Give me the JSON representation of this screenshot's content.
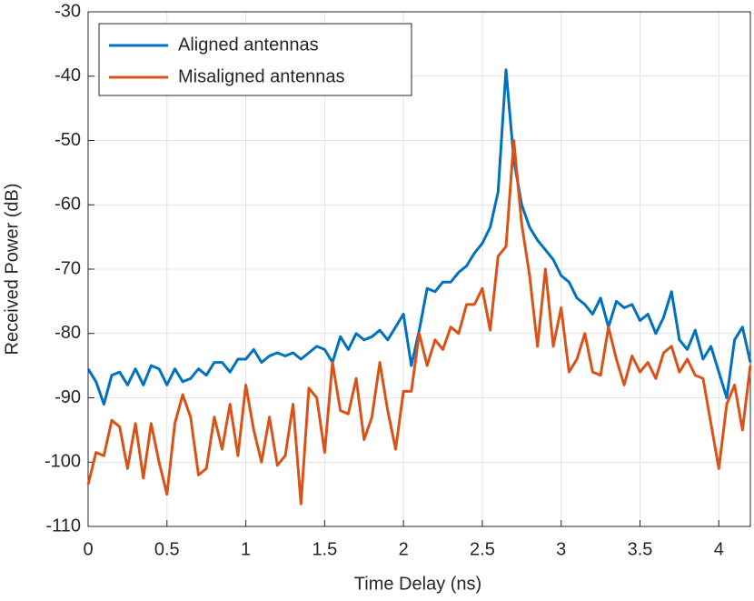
{
  "chart_data": {
    "type": "line",
    "x_label": "Time Delay (ns)",
    "y_label": "Received Power (dB)",
    "x": [
      0,
      0.05,
      0.1,
      0.15,
      0.2,
      0.25,
      0.3,
      0.35,
      0.4,
      0.45,
      0.5,
      0.55,
      0.6,
      0.65,
      0.7,
      0.75,
      0.8,
      0.85,
      0.9,
      0.95,
      1,
      1.05,
      1.1,
      1.15,
      1.2,
      1.25,
      1.3,
      1.35,
      1.4,
      1.45,
      1.5,
      1.55,
      1.6,
      1.65,
      1.7,
      1.75,
      1.8,
      1.85,
      1.9,
      1.95,
      2,
      2.05,
      2.1,
      2.15,
      2.2,
      2.25,
      2.3,
      2.35,
      2.4,
      2.45,
      2.5,
      2.55,
      2.6,
      2.65,
      2.7,
      2.75,
      2.8,
      2.85,
      2.9,
      2.95,
      3,
      3.05,
      3.1,
      3.15,
      3.2,
      3.25,
      3.3,
      3.35,
      3.4,
      3.45,
      3.5,
      3.55,
      3.6,
      3.65,
      3.7,
      3.75,
      3.8,
      3.85,
      3.9,
      3.95,
      4,
      4.05,
      4.1,
      4.15,
      4.2
    ],
    "series": [
      {
        "name": "Aligned antennas",
        "color": "#0072BD",
        "values": [
          -85.5,
          -87.5,
          -91,
          -86.5,
          -86,
          -88,
          -85.5,
          -88,
          -85,
          -85.5,
          -88,
          -85.5,
          -87.5,
          -87,
          -85.5,
          -86.5,
          -84.5,
          -84.5,
          -86,
          -84,
          -84,
          -82.5,
          -84.5,
          -83.5,
          -83,
          -83.5,
          -83,
          -84,
          -83,
          -82,
          -82.5,
          -84.5,
          -80.5,
          -82.5,
          -80,
          -81,
          -80.5,
          -79.5,
          -81,
          -79,
          -77,
          -85,
          -79.5,
          -73,
          -73.5,
          -72,
          -72,
          -70.5,
          -69.5,
          -67.5,
          -66,
          -63.5,
          -58,
          -39,
          -53,
          -60,
          -63.5,
          -65.5,
          -67,
          -68.5,
          -71,
          -72,
          -74.5,
          -75.5,
          -77,
          -74.5,
          -79,
          -75,
          -76,
          -75.5,
          -78,
          -77,
          -80,
          -77.5,
          -73.5,
          -81,
          -82.5,
          -79.5,
          -84,
          -82,
          -86,
          -90,
          -81,
          -79,
          -84.5
        ]
      },
      {
        "name": "Misaligned antennas",
        "color": "#D95319",
        "values": [
          -103.5,
          -98.5,
          -99,
          -93.5,
          -94.5,
          -101,
          -94,
          -102.5,
          -94,
          -100,
          -105,
          -94,
          -89.5,
          -93,
          -102,
          -101,
          -93,
          -98,
          -91,
          -99,
          -88,
          -95,
          -100,
          -93,
          -100.5,
          -99,
          -91,
          -106.5,
          -88.5,
          -90,
          -98.5,
          -84.5,
          -92,
          -92.5,
          -87,
          -96.5,
          -93,
          -84.5,
          -92,
          -98,
          -89,
          -89,
          -80,
          -85,
          -81,
          -82.5,
          -79,
          -80,
          -75.5,
          -75.5,
          -73,
          -79.5,
          -68,
          -66.5,
          -50,
          -63,
          -71,
          -82,
          -70,
          -82,
          -76,
          -86,
          -84,
          -80,
          -86,
          -86.5,
          -79,
          -84,
          -88,
          -83.5,
          -86,
          -84.5,
          -87,
          -83,
          -82,
          -86,
          -84,
          -86.5,
          -87,
          -94,
          -101,
          -91,
          -88,
          -95,
          -85
        ]
      }
    ],
    "xlim": [
      0,
      4.2
    ],
    "xticks": [
      0,
      0.5,
      1,
      1.5,
      2,
      2.5,
      3,
      3.5,
      4
    ],
    "ylim": [
      -110,
      -30
    ],
    "yticks": [
      -110,
      -100,
      -90,
      -80,
      -70,
      -60,
      -50,
      -40,
      -30
    ],
    "grid": true,
    "legend": "upper-left"
  }
}
